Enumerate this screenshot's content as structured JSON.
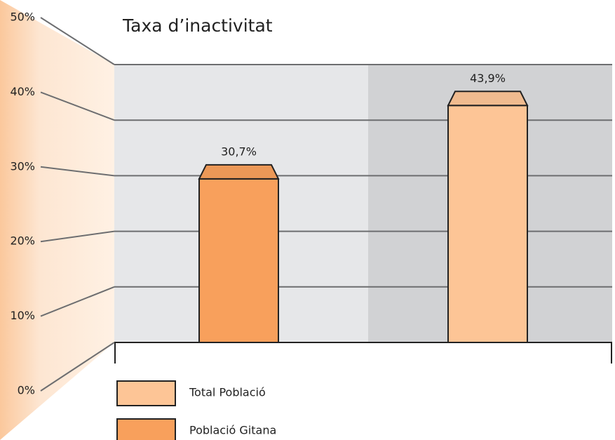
{
  "chart_data": {
    "type": "bar",
    "title": "Taxa d’inactivitat",
    "categories": [
      null,
      null
    ],
    "series": [
      {
        "name": "Total Població",
        "color": "#fdc596",
        "values": [
          null,
          43.9
        ],
        "value_labels": [
          null,
          "43,9%"
        ]
      },
      {
        "name": "Població Gitana",
        "color": "#f8a05c",
        "values": [
          30.7,
          null
        ],
        "value_labels": [
          "30,7%",
          null
        ]
      }
    ],
    "ylim": [
      0,
      50
    ],
    "yticks": [
      {
        "value": 0,
        "label": "0%"
      },
      {
        "value": 10,
        "label": "10%"
      },
      {
        "value": 20,
        "label": "20%"
      },
      {
        "value": 30,
        "label": "30%"
      },
      {
        "value": 40,
        "label": "40%"
      },
      {
        "value": 50,
        "label": "50%"
      }
    ],
    "grid": true
  }
}
